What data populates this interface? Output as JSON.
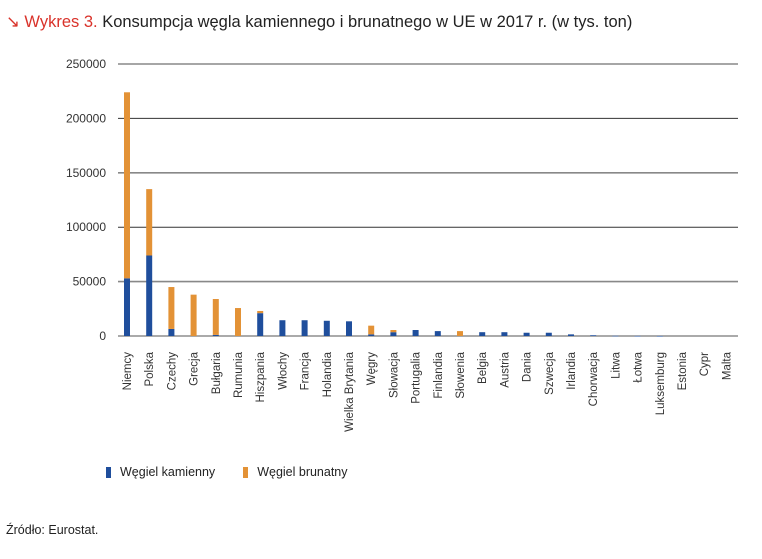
{
  "title": {
    "prefix": "↘ Wykres 3.",
    "text": "Konsumpcja węgla kamiennego i brunatnego w UE w 2017 r. (w tys. ton)"
  },
  "source": "Źródło: Eurostat.",
  "chart_data": {
    "type": "bar",
    "stacked": true,
    "title": "Konsumpcja węgla kamiennego i brunatnego w UE w 2017 r. (w tys. ton)",
    "xlabel": "",
    "ylabel": "",
    "ylim": [
      0,
      250000
    ],
    "yticks": [
      0,
      50000,
      100000,
      150000,
      200000,
      250000
    ],
    "ytick_labels": [
      "0",
      "50000",
      "100000",
      "150000",
      "200000",
      "250000"
    ],
    "grid": true,
    "legend_placement": "bottom-left",
    "categories": [
      "Niemcy",
      "Polska",
      "Czechy",
      "Grecja",
      "Bułgaria",
      "Rumunia",
      "Hiszpania",
      "Włochy",
      "Francja",
      "Holandia",
      "Wielka Brytania",
      "Węgry",
      "Słowacja",
      "Portugalia",
      "Finlandia",
      "Słowenia",
      "Belgia",
      "Austria",
      "Dania",
      "Szwecja",
      "Irlandia",
      "Chorwacja",
      "Litwa",
      "Łotwa",
      "Luksemburg",
      "Estonia",
      "Cypr",
      "Malta"
    ],
    "series": [
      {
        "name": "Węgiel kamienny",
        "color": "#1f4e9c",
        "values": [
          53000,
          74000,
          6500,
          0,
          1000,
          0,
          21000,
          14500,
          14500,
          14000,
          13500,
          1500,
          3500,
          5500,
          4500,
          0,
          3500,
          3500,
          3000,
          3000,
          1500,
          700,
          200,
          100,
          50,
          0,
          0,
          0
        ]
      },
      {
        "name": "Węgiel brunatny",
        "color": "#e39236",
        "values": [
          171000,
          61000,
          38500,
          38000,
          33000,
          25700,
          2000,
          0,
          0,
          0,
          0,
          8000,
          2000,
          0,
          0,
          4500,
          0,
          0,
          0,
          0,
          0,
          0,
          0,
          0,
          0,
          0,
          0,
          0
        ]
      }
    ]
  }
}
